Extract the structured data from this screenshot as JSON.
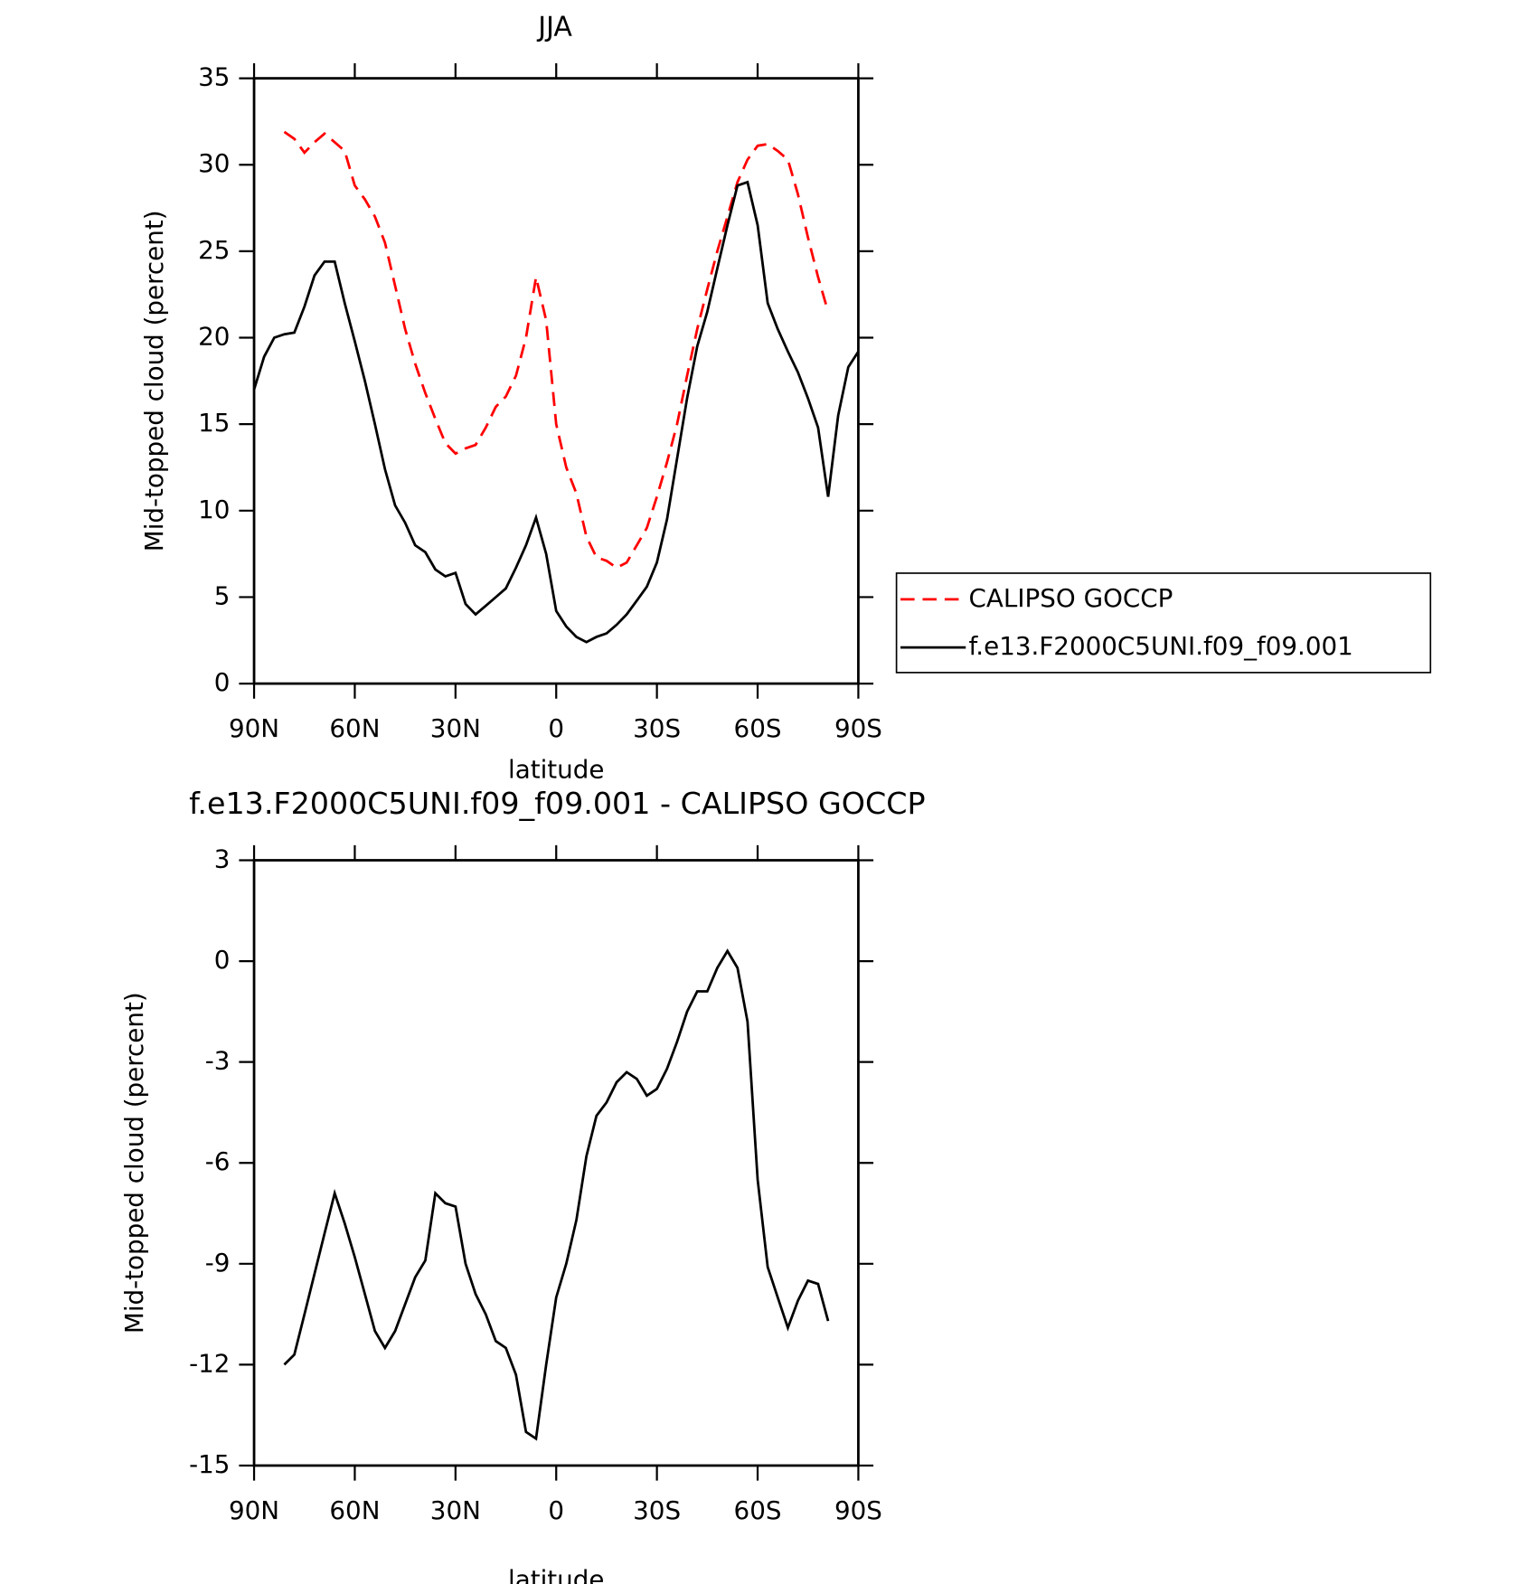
{
  "chart_data": [
    {
      "type": "line",
      "title": "JJA",
      "xlabel": "latitude",
      "ylabel": "Mid-topped cloud (percent)",
      "legend": "right",
      "x": [
        90,
        87,
        84,
        81,
        78,
        75,
        72,
        69,
        66,
        63,
        60,
        57,
        54,
        51,
        48,
        45,
        42,
        39,
        36,
        33,
        30,
        27,
        24,
        21,
        18,
        15,
        12,
        9,
        6,
        3,
        0,
        -3,
        -6,
        -9,
        -12,
        -15,
        -18,
        -21,
        -24,
        -27,
        -30,
        -33,
        -36,
        -39,
        -42,
        -45,
        -48,
        -51,
        -54,
        -57,
        -60,
        -63,
        -66,
        -69,
        -72,
        -75,
        -78,
        -81,
        -84,
        -87,
        -90
      ],
      "xlim": [
        90,
        -90
      ],
      "xticks": [
        {
          "value": 90,
          "label": "90N"
        },
        {
          "value": 60,
          "label": "60N"
        },
        {
          "value": 30,
          "label": "30N"
        },
        0,
        {
          "value": -30,
          "label": "30S"
        },
        {
          "value": -60,
          "label": "60S"
        },
        {
          "value": -90,
          "label": "90S"
        }
      ],
      "ylim": [
        0,
        35
      ],
      "yticks": [
        0,
        5,
        10,
        15,
        20,
        25,
        30,
        35
      ],
      "series": [
        {
          "name": "CALIPSO GOCCP",
          "color": "#ff0000",
          "dashed": true,
          "values": [
            null,
            null,
            null,
            31.9,
            31.5,
            30.7,
            31.3,
            31.8,
            31.3,
            30.8,
            28.8,
            28.0,
            27.0,
            25.5,
            23.0,
            20.5,
            18.5,
            16.8,
            15.3,
            13.9,
            13.3,
            13.6,
            13.8,
            14.8,
            16.0,
            16.6,
            17.8,
            20.0,
            23.5,
            21.0,
            15.0,
            12.5,
            11.0,
            8.5,
            7.3,
            7.1,
            6.7,
            7.0,
            8.0,
            9.0,
            10.8,
            12.8,
            15.0,
            17.8,
            20.5,
            22.8,
            25.0,
            27.0,
            29.0,
            30.3,
            31.1,
            31.2,
            30.8,
            30.3,
            28.3,
            25.8,
            23.5,
            21.5,
            null,
            null,
            null
          ]
        },
        {
          "name": "f.e13.F2000C5UNI.f09_f09.001",
          "color": "#000000",
          "dashed": false,
          "values": [
            17.0,
            18.9,
            20.0,
            20.2,
            20.3,
            21.8,
            23.6,
            24.4,
            24.4,
            22.0,
            19.8,
            17.5,
            15.0,
            12.4,
            10.3,
            9.3,
            8.0,
            7.6,
            6.6,
            6.2,
            6.4,
            4.6,
            4.0,
            4.5,
            5.0,
            5.5,
            6.7,
            8.0,
            9.6,
            7.5,
            4.2,
            3.3,
            2.7,
            2.4,
            2.7,
            2.9,
            3.4,
            4.0,
            4.8,
            5.6,
            7.0,
            9.5,
            13.0,
            16.5,
            19.5,
            21.5,
            24.0,
            26.5,
            28.8,
            29.0,
            26.5,
            22.0,
            20.5,
            19.2,
            18.0,
            16.5,
            14.8,
            10.8,
            15.5,
            18.3,
            19.2
          ]
        }
      ]
    },
    {
      "type": "line",
      "title": "f.e13.F2000C5UNI.f09_f09.001 - CALIPSO GOCCP",
      "xlabel": "latitude",
      "ylabel": "Mid-topped cloud (percent)",
      "x": [
        90,
        87,
        84,
        81,
        78,
        75,
        72,
        69,
        66,
        63,
        60,
        57,
        54,
        51,
        48,
        45,
        42,
        39,
        36,
        33,
        30,
        27,
        24,
        21,
        18,
        15,
        12,
        9,
        6,
        3,
        0,
        -3,
        -6,
        -9,
        -12,
        -15,
        -18,
        -21,
        -24,
        -27,
        -30,
        -33,
        -36,
        -39,
        -42,
        -45,
        -48,
        -51,
        -54,
        -57,
        -60,
        -63,
        -66,
        -69,
        -72,
        -75,
        -78,
        -81,
        -84,
        -87,
        -90
      ],
      "xlim": [
        90,
        -90
      ],
      "xticks": [
        {
          "value": 90,
          "label": "90N"
        },
        {
          "value": 60,
          "label": "60N"
        },
        {
          "value": 30,
          "label": "30N"
        },
        0,
        {
          "value": -30,
          "label": "30S"
        },
        {
          "value": -60,
          "label": "60S"
        },
        {
          "value": -90,
          "label": "90S"
        }
      ],
      "ylim": [
        -15,
        3
      ],
      "yticks": [
        -15,
        -12,
        -9,
        -6,
        -3,
        0,
        3
      ],
      "series": [
        {
          "color": "#000000",
          "dashed": false,
          "values": [
            null,
            null,
            null,
            -12.0,
            -11.7,
            -10.5,
            -9.3,
            -8.1,
            -6.9,
            -7.8,
            -8.8,
            -9.9,
            -11.0,
            -11.5,
            -11.0,
            -10.2,
            -9.4,
            -8.9,
            -6.9,
            -7.2,
            -7.3,
            -9.0,
            -9.9,
            -10.5,
            -11.3,
            -11.5,
            -12.3,
            -14.0,
            -14.2,
            -12.0,
            -10.0,
            -9.0,
            -7.7,
            -5.8,
            -4.6,
            -4.2,
            -3.6,
            -3.3,
            -3.5,
            -4.0,
            -3.8,
            -3.2,
            -2.4,
            -1.5,
            -0.9,
            -0.9,
            -0.2,
            0.3,
            -0.2,
            -1.8,
            -6.5,
            -9.1,
            -10.0,
            -10.9,
            -10.1,
            -9.5,
            -9.6,
            -10.7,
            null,
            null,
            null
          ]
        }
      ]
    }
  ]
}
